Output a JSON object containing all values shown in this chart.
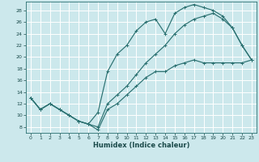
{
  "title": "",
  "xlabel": "Humidex (Indice chaleur)",
  "xlim": [
    -0.5,
    23.5
  ],
  "ylim": [
    7,
    29.5
  ],
  "yticks": [
    8,
    10,
    12,
    14,
    16,
    18,
    20,
    22,
    24,
    26,
    28
  ],
  "xticks": [
    0,
    1,
    2,
    3,
    4,
    5,
    6,
    7,
    8,
    9,
    10,
    11,
    12,
    13,
    14,
    15,
    16,
    17,
    18,
    19,
    20,
    21,
    22,
    23
  ],
  "bg_color": "#cce8ec",
  "line_color": "#2a7070",
  "grid_color": "#ffffff",
  "line1_x": [
    0,
    1,
    2,
    3,
    4,
    5,
    6,
    7,
    8,
    9,
    10,
    11,
    12,
    13,
    14,
    15,
    16,
    17,
    18,
    19,
    20,
    21,
    22,
    23
  ],
  "line1_y": [
    13,
    11,
    12,
    11,
    10,
    9,
    8.5,
    7.5,
    11.0,
    12.0,
    13.5,
    15,
    16.5,
    17.5,
    17.5,
    18.5,
    19.0,
    19.5,
    19.0,
    19.0,
    19.0,
    19.0,
    19.0,
    19.5
  ],
  "line2_x": [
    0,
    1,
    2,
    3,
    4,
    5,
    6,
    7,
    8,
    9,
    10,
    11,
    12,
    13,
    14,
    15,
    16,
    17,
    18,
    19,
    20,
    21,
    22,
    23
  ],
  "line2_y": [
    13,
    11,
    12,
    11,
    10,
    9,
    8.5,
    10.5,
    17.5,
    20.5,
    22.0,
    24.5,
    26.0,
    26.5,
    24.0,
    27.5,
    28.5,
    29.0,
    28.5,
    28.0,
    27.0,
    25.0,
    22.0,
    19.5
  ],
  "line3_x": [
    0,
    1,
    2,
    3,
    4,
    5,
    6,
    7,
    8,
    9,
    10,
    11,
    12,
    13,
    14,
    15,
    16,
    17,
    18,
    19,
    20,
    21,
    22,
    23
  ],
  "line3_y": [
    13,
    11,
    12,
    11,
    10,
    9,
    8.5,
    8.0,
    12.0,
    13.5,
    15.0,
    17.0,
    19.0,
    20.5,
    22.0,
    24.0,
    25.5,
    26.5,
    27.0,
    27.5,
    26.5,
    25.0,
    22.0,
    19.5
  ]
}
